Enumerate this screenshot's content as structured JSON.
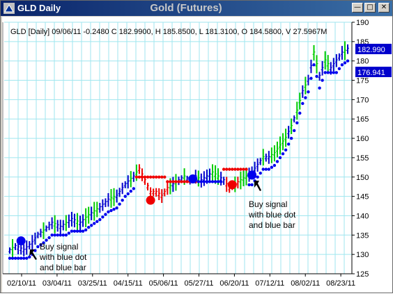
{
  "window": {
    "title_left": "GLD Daily",
    "title_center": "Gold (Futures)",
    "buttons": [
      "minimize",
      "maximize",
      "close"
    ],
    "icons": {
      "app": "gold-chart-app-icon",
      "minimize": "minimize-icon",
      "maximize": "maximize-icon",
      "close": "close-icon"
    }
  },
  "chart": {
    "info_line": "GLD [Daily] 09/06/11  -0.2480 C 182.9900, H 185.8500, L 181.3100, O 184.5800, V 27.5967M",
    "price_label_1": "182.990",
    "price_label_2": "176.941",
    "annotations": [
      {
        "lines": [
          "Buy signal",
          "with blue dot",
          "and blue bar"
        ]
      },
      {
        "lines": [
          "Buy signal",
          "with blue dot",
          "and blue bar"
        ]
      }
    ],
    "colors": {
      "up_bar": "#00cc00",
      "down_bar": "#ee0000",
      "trend_bar": "#0000cc",
      "grid": "#9fe6ef",
      "dot_blue": "#0000ee",
      "dot_red": "#ee0000",
      "label_bg": "#0000cc"
    }
  },
  "chart_data": {
    "type": "bar",
    "title": "Gold (Futures)",
    "ylim": [
      125,
      190
    ],
    "yticks": [
      125,
      130,
      135,
      140,
      145,
      150,
      155,
      160,
      165,
      170,
      175,
      180,
      185,
      190
    ],
    "ytick_labels": [
      "125",
      "130",
      "135",
      "140",
      "145",
      "150",
      "155",
      "160",
      "165",
      "170",
      "175",
      "180",
      "185",
      "190"
    ],
    "xtick_labels": [
      "02/10/11",
      "03/04/11",
      "03/25/11",
      "04/15/11",
      "05/06/11",
      "05/27/11",
      "06/20/11",
      "07/12/11",
      "08/02/11",
      "08/23/11"
    ],
    "series": [
      {
        "name": "GLD",
        "anchors": [
          [
            0,
            131
          ],
          [
            2,
            132
          ],
          [
            5,
            131
          ],
          [
            8,
            133
          ],
          [
            10,
            135
          ],
          [
            12,
            136
          ],
          [
            15,
            138
          ],
          [
            18,
            137
          ],
          [
            22,
            139
          ],
          [
            25,
            138
          ],
          [
            28,
            140
          ],
          [
            32,
            142
          ],
          [
            35,
            144
          ],
          [
            38,
            145
          ],
          [
            41,
            148
          ],
          [
            44,
            150
          ],
          [
            46,
            152
          ],
          [
            48,
            149
          ],
          [
            50,
            146
          ],
          [
            52,
            146
          ],
          [
            54,
            145
          ],
          [
            56,
            147
          ],
          [
            58,
            148
          ],
          [
            60,
            149
          ],
          [
            62,
            150
          ],
          [
            64,
            149
          ],
          [
            66,
            150
          ],
          [
            68,
            149
          ],
          [
            70,
            150
          ],
          [
            72,
            151
          ],
          [
            74,
            150
          ],
          [
            76,
            149
          ],
          [
            78,
            147
          ],
          [
            80,
            148
          ],
          [
            82,
            149
          ],
          [
            84,
            150
          ],
          [
            86,
            151
          ],
          [
            88,
            153
          ],
          [
            90,
            155
          ],
          [
            92,
            155
          ],
          [
            94,
            156
          ],
          [
            96,
            158
          ],
          [
            98,
            160
          ],
          [
            100,
            163
          ],
          [
            102,
            167
          ],
          [
            104,
            172
          ],
          [
            106,
            175
          ],
          [
            108,
            182
          ],
          [
            110,
            176
          ],
          [
            112,
            180
          ],
          [
            114,
            178
          ],
          [
            116,
            180
          ],
          [
            118,
            182
          ],
          [
            120,
            183
          ]
        ]
      }
    ],
    "big_dots": [
      {
        "x": 4,
        "y": 133.5,
        "color": "blue"
      },
      {
        "x": 50,
        "y": 144,
        "color": "red"
      },
      {
        "x": 65,
        "y": 149.5,
        "color": "blue"
      },
      {
        "x": 79,
        "y": 148,
        "color": "red"
      },
      {
        "x": 86,
        "y": 150.5,
        "color": "blue"
      }
    ],
    "last_close": 182.99,
    "level_2": 176.94
  }
}
